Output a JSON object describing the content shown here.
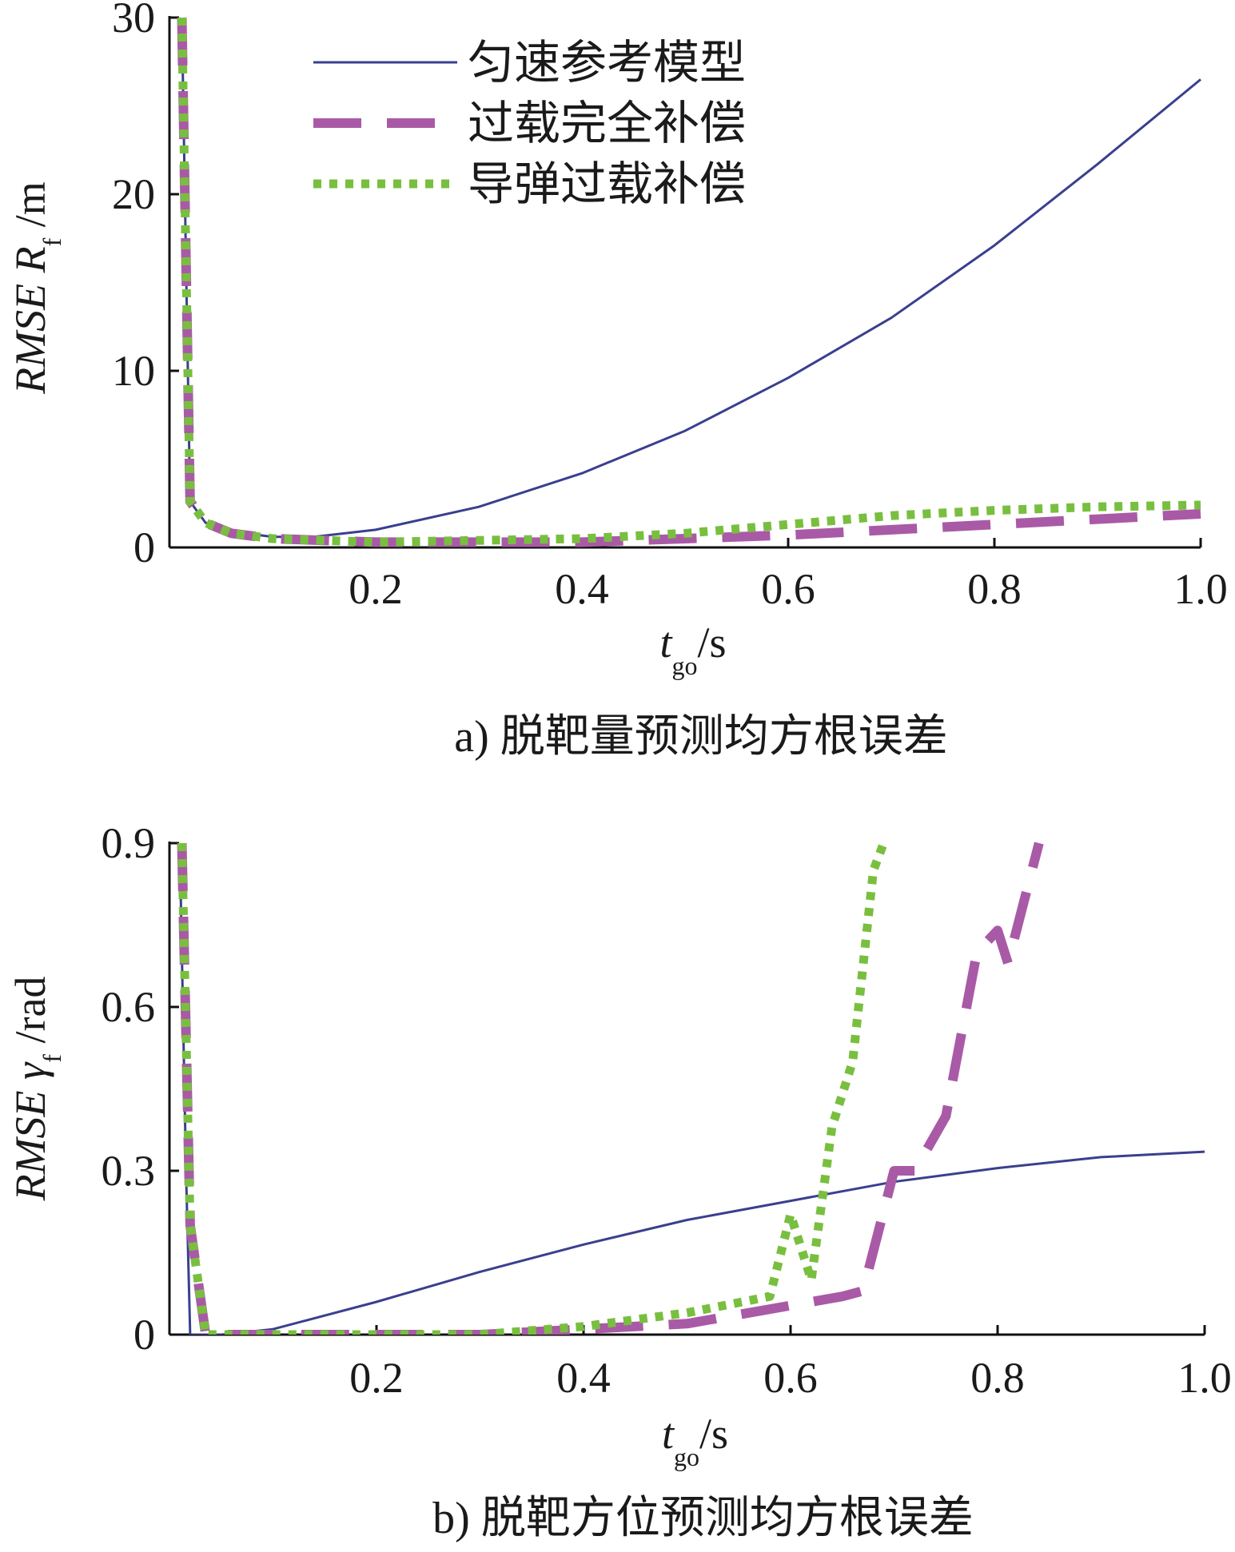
{
  "chart_data": [
    {
      "type": "line",
      "caption": "a) 脱靶量预测均方根误差",
      "xlabel": {
        "main": "t",
        "sub": "go",
        "unit": "/s"
      },
      "ylabel": {
        "prefix": "RMSE",
        "symbol": "R",
        "sub": "f",
        "unit": "/m"
      },
      "xlim": [
        0,
        1.0
      ],
      "ylim": [
        0,
        30
      ],
      "xticks": [
        0.2,
        0.4,
        0.6,
        0.8,
        1.0
      ],
      "xtick_labels": [
        "0.2",
        "0.4",
        "0.6",
        "0.8",
        "1.0"
      ],
      "yticks": [
        0,
        10,
        20,
        30
      ],
      "ytick_labels": [
        "0",
        "10",
        "20",
        "30"
      ],
      "grid": false,
      "legend_position": "top-left",
      "series": [
        {
          "name": "匀速参考模型",
          "color": "#3a3f8f",
          "style": "solid",
          "x": [
            0.012,
            0.02,
            0.035,
            0.06,
            0.1,
            0.14,
            0.2,
            0.3,
            0.4,
            0.5,
            0.6,
            0.7,
            0.8,
            0.9,
            1.0
          ],
          "y": [
            30,
            2.6,
            1.4,
            0.9,
            0.6,
            0.6,
            1.0,
            2.3,
            4.2,
            6.6,
            9.6,
            13.0,
            17.1,
            21.7,
            26.5
          ]
        },
        {
          "name": "过载完全补偿",
          "color": "#a95aa6",
          "style": "dashed",
          "x": [
            0.012,
            0.02,
            0.035,
            0.06,
            0.1,
            0.15,
            0.2,
            0.3,
            0.4,
            0.5,
            0.6,
            0.7,
            0.8,
            0.9,
            1.0
          ],
          "y": [
            30,
            2.6,
            1.4,
            0.8,
            0.5,
            0.4,
            0.3,
            0.3,
            0.3,
            0.5,
            0.7,
            1.0,
            1.3,
            1.6,
            1.9
          ]
        },
        {
          "name": "导弹过载补偿",
          "color": "#79bf3f",
          "style": "dotted",
          "x": [
            0.012,
            0.02,
            0.035,
            0.06,
            0.1,
            0.15,
            0.2,
            0.3,
            0.4,
            0.5,
            0.6,
            0.7,
            0.8,
            0.9,
            1.0
          ],
          "y": [
            30,
            2.6,
            1.4,
            0.8,
            0.5,
            0.4,
            0.3,
            0.4,
            0.5,
            0.8,
            1.3,
            1.8,
            2.1,
            2.3,
            2.4
          ]
        }
      ]
    },
    {
      "type": "line",
      "caption": "b) 脱靶方位预测均方根误差",
      "xlabel": {
        "main": "t",
        "sub": "go",
        "unit": "/s"
      },
      "ylabel": {
        "prefix": "RMSE",
        "symbol": "γ",
        "sub": "f",
        "unit": "/rad"
      },
      "xlim": [
        0,
        1.0
      ],
      "ylim": [
        0,
        0.9
      ],
      "xticks": [
        0.2,
        0.4,
        0.6,
        0.8,
        1.0
      ],
      "xtick_labels": [
        "0.2",
        "0.4",
        "0.6",
        "0.8",
        "1.0"
      ],
      "yticks": [
        0,
        0.3,
        0.6,
        0.9
      ],
      "ytick_labels": [
        "0",
        "0.3",
        "0.6",
        "0.9"
      ],
      "grid": false,
      "series": [
        {
          "name": "匀速参考模型",
          "color": "#3a3f8f",
          "style": "solid",
          "x": [
            0.01,
            0.016,
            0.02,
            0.05,
            0.1,
            0.2,
            0.3,
            0.4,
            0.5,
            0.6,
            0.7,
            0.8,
            0.9,
            1.0
          ],
          "y": [
            0.9,
            0.3,
            0.0,
            0.0,
            0.01,
            0.06,
            0.115,
            0.165,
            0.21,
            0.245,
            0.28,
            0.305,
            0.325,
            0.335
          ]
        },
        {
          "name": "过载完全补偿",
          "color": "#a95aa6",
          "style": "dashed",
          "x": [
            0.012,
            0.02,
            0.035,
            0.1,
            0.3,
            0.4,
            0.5,
            0.56,
            0.62,
            0.65,
            0.67,
            0.7,
            0.72,
            0.75,
            0.78,
            0.8,
            0.81,
            0.84
          ],
          "y": [
            0.9,
            0.2,
            0.0,
            0.0,
            0.0,
            0.01,
            0.02,
            0.04,
            0.06,
            0.07,
            0.08,
            0.3,
            0.3,
            0.4,
            0.7,
            0.74,
            0.68,
            0.9
          ]
        },
        {
          "name": "导弹过载补偿",
          "color": "#79bf3f",
          "style": "dotted",
          "x": [
            0.012,
            0.02,
            0.035,
            0.1,
            0.3,
            0.4,
            0.5,
            0.58,
            0.6,
            0.62,
            0.64,
            0.66,
            0.68,
            0.69
          ],
          "y": [
            0.9,
            0.2,
            0.0,
            0.0,
            0.0,
            0.015,
            0.04,
            0.07,
            0.22,
            0.1,
            0.38,
            0.5,
            0.85,
            0.9
          ]
        }
      ]
    }
  ]
}
